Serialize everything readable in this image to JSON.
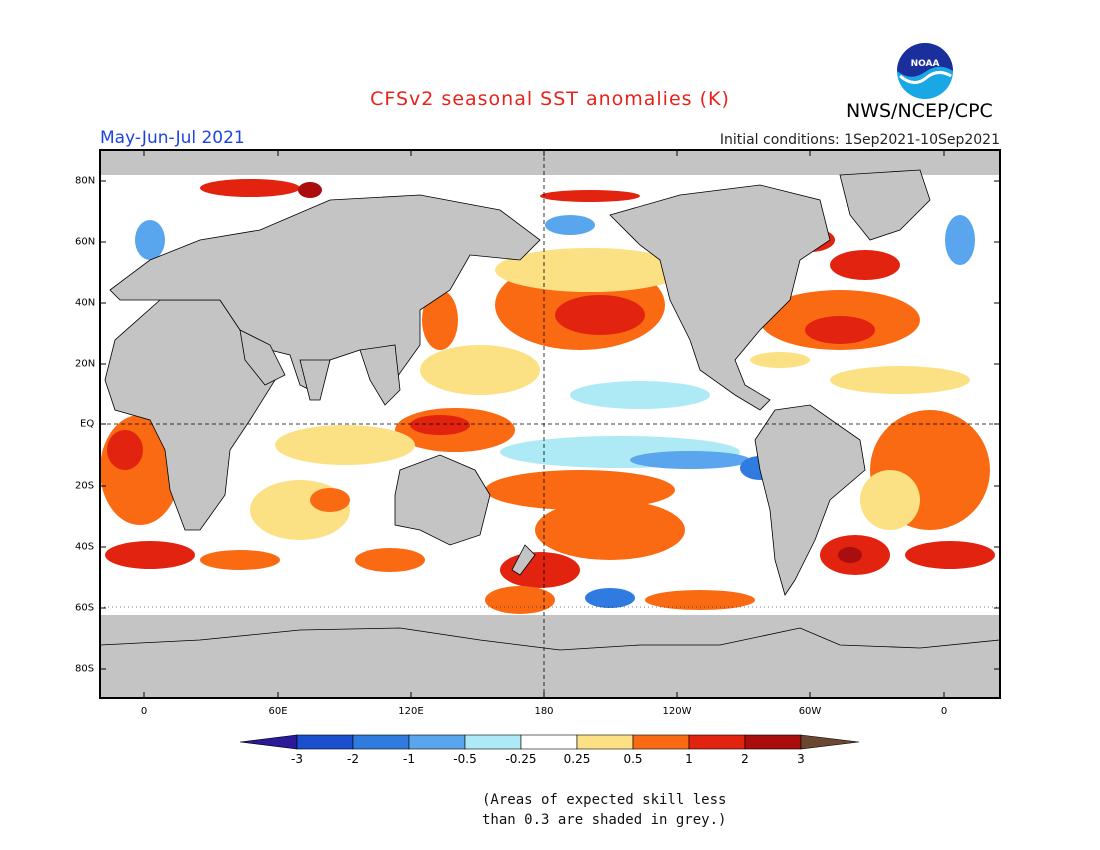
{
  "title": "CFSv2 seasonal SST anomalies (K)",
  "agency": "NWS/NCEP/CPC",
  "logo_text": "NOAA",
  "season": "May-Jun-Jul 2021",
  "initial_conditions": "Initial conditions: 1Sep2021-10Sep2021",
  "lat_labels": [
    "80N",
    "60N",
    "40N",
    "20N",
    "EQ",
    "20S",
    "40S",
    "60S",
    "80S"
  ],
  "lon_labels": [
    "0",
    "60E",
    "120E",
    "180",
    "120W",
    "60W",
    "0"
  ],
  "colorbar": {
    "labels": [
      "-3",
      "-2",
      "-1",
      "-0.5",
      "-0.25",
      "0.25",
      "0.5",
      "1",
      "2",
      "3"
    ],
    "colors": [
      "#2a1a9a",
      "#1a4fcf",
      "#2f7be0",
      "#5aa6ee",
      "#aeeaf6",
      "#ffffff",
      "#fbe184",
      "#f96a13",
      "#e2230f",
      "#a90d0d",
      "#6b4630"
    ]
  },
  "colors": {
    "land": "#c4c4c4",
    "skill_grey": "#c4c4c4",
    "title_red": "#e8221b",
    "season_blue": "#1e44e0"
  },
  "note_line1": "(Areas of expected skill less",
  "note_line2": "than 0.3 are shaded in grey.)"
}
